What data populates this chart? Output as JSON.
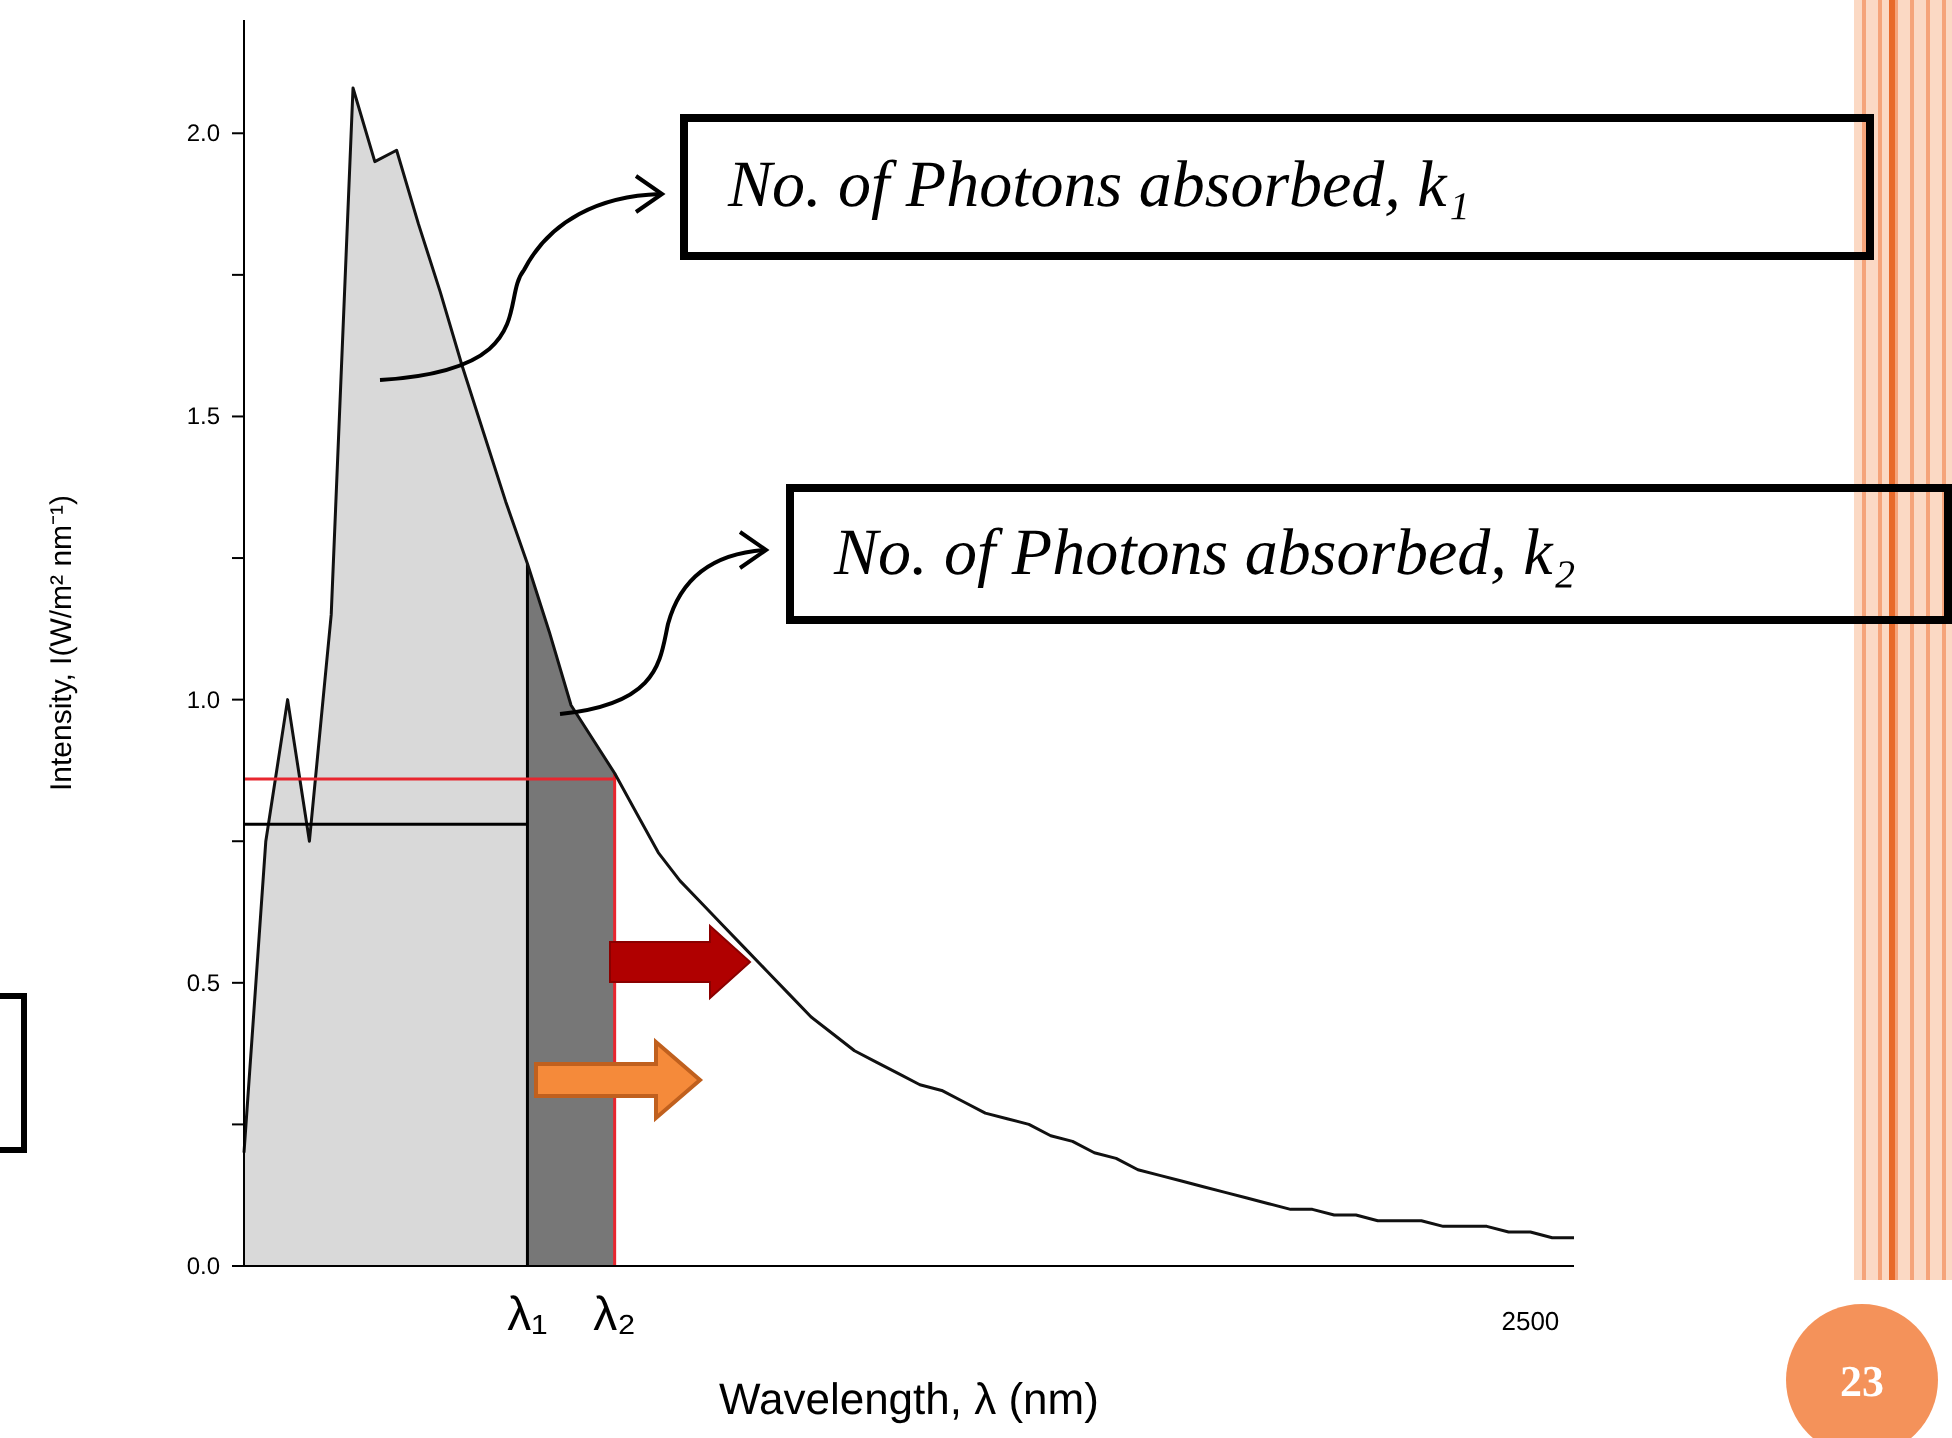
{
  "chart_data": {
    "type": "line",
    "xlabel": "Wavelength, λ (nm)",
    "ylabel": "Intensity, I(W/m² nm⁻¹)",
    "ylim": [
      0,
      2.2
    ],
    "marker": "none",
    "categories": [
      null,
      null,
      null,
      null,
      null,
      null,
      null,
      null,
      null,
      null,
      null,
      null,
      null,
      "λ₁",
      null,
      null,
      null,
      "λ₂",
      null,
      null,
      null,
      null,
      null,
      null,
      null,
      null,
      null,
      null,
      null,
      null,
      null,
      null,
      null,
      null,
      null,
      null,
      null,
      null,
      null,
      null,
      null,
      null,
      null,
      null,
      null,
      null,
      null,
      null,
      null,
      null,
      null,
      null,
      null,
      null,
      null,
      null,
      null,
      null,
      null,
      "2500",
      null,
      null
    ],
    "yticks": [
      {
        "value": 0,
        "label": "0.0"
      },
      {
        "value": 0.25,
        "label": null
      },
      0.5,
      {
        "value": 0.75,
        "label": null
      },
      {
        "value": 1,
        "label": "1.0"
      },
      {
        "value": 1.25,
        "label": null
      },
      1.5,
      {
        "value": 1.75,
        "label": null
      },
      {
        "value": 2,
        "label": "2.0"
      }
    ],
    "ref_lines": [
      {
        "axis": "x",
        "value": "λ₁",
        "color": "#000000"
      },
      {
        "axis": "x",
        "value": "λ₂",
        "color": "#e8262f"
      }
    ],
    "annotations": [
      "No. of Photons absorbed, k₁",
      "No. of Photons absorbed, k₂",
      "23"
    ],
    "series": [
      {
        "type": "area",
        "color": "#d9d9d9",
        "values": [
          0.2,
          0.75,
          1.0,
          0.75,
          1.15,
          2.08,
          1.95,
          1.97,
          1.84,
          1.72,
          1.59,
          1.47,
          1.35,
          1.24,
          null,
          null,
          null,
          null,
          null,
          null,
          null,
          null,
          null,
          null,
          null,
          null,
          null,
          null,
          null,
          null,
          null,
          null,
          null,
          null,
          null,
          null,
          null,
          null,
          null,
          null,
          null,
          null,
          null,
          null,
          null,
          null,
          null,
          null,
          null,
          null,
          null,
          null,
          null,
          null,
          null,
          null,
          null,
          null,
          null,
          null,
          null,
          null
        ]
      },
      {
        "type": "area",
        "color": "#777777",
        "values": [
          null,
          null,
          null,
          null,
          null,
          null,
          null,
          null,
          null,
          null,
          null,
          null,
          null,
          1.24,
          1.12,
          0.99,
          0.93,
          0.87,
          null,
          null,
          null,
          null,
          null,
          null,
          null,
          null,
          null,
          null,
          null,
          null,
          null,
          null,
          null,
          null,
          null,
          null,
          null,
          null,
          null,
          null,
          null,
          null,
          null,
          null,
          null,
          null,
          null,
          null,
          null,
          null,
          null,
          null,
          null,
          null,
          null,
          null,
          null,
          null,
          null,
          null,
          null,
          null
        ]
      },
      {
        "color": "#111111",
        "values": [
          0.2,
          0.75,
          1.0,
          0.75,
          1.15,
          2.08,
          1.95,
          1.97,
          1.84,
          1.72,
          1.59,
          1.47,
          1.35,
          1.24,
          1.12,
          0.99,
          0.93,
          0.87,
          0.8,
          0.73,
          0.68,
          0.64,
          0.6,
          0.56,
          0.52,
          0.48,
          0.44,
          0.41,
          0.38,
          0.36,
          0.34,
          0.32,
          0.31,
          0.29,
          0.27,
          0.26,
          0.25,
          0.23,
          0.22,
          0.2,
          0.19,
          0.17,
          0.16,
          0.15,
          0.14,
          0.13,
          0.12,
          0.11,
          0.1,
          0.1,
          0.09,
          0.09,
          0.08,
          0.08,
          0.08,
          0.07,
          0.07,
          0.07,
          0.06,
          0.06,
          0.05,
          0.05
        ]
      },
      {
        "color": "#000000",
        "values": [
          0.78,
          0.78,
          0.78,
          0.78,
          0.78,
          0.78,
          0.78,
          0.78,
          0.78,
          0.78,
          0.78,
          0.78,
          0.78,
          0.78,
          null,
          null,
          null,
          null,
          null,
          null,
          null,
          null,
          null,
          null,
          null,
          null,
          null,
          null,
          null,
          null,
          null,
          null,
          null,
          null,
          null,
          null,
          null,
          null,
          null,
          null,
          null,
          null,
          null,
          null,
          null,
          null,
          null,
          null,
          null,
          null,
          null,
          null,
          null,
          null,
          null,
          null,
          null,
          null,
          null,
          null,
          null,
          null
        ]
      },
      {
        "color": "#e8262f",
        "values": [
          0.86,
          0.86,
          0.86,
          0.86,
          0.86,
          0.86,
          0.86,
          0.86,
          0.86,
          0.86,
          0.86,
          0.86,
          0.86,
          0.86,
          0.86,
          0.86,
          0.86,
          0.86,
          null,
          null,
          null,
          null,
          null,
          null,
          null,
          null,
          null,
          null,
          null,
          null,
          null,
          null,
          null,
          null,
          null,
          null,
          null,
          null,
          null,
          null,
          null,
          null,
          null,
          null,
          null,
          null,
          null,
          null,
          null,
          null,
          null,
          null,
          null,
          null,
          null,
          null,
          null,
          null,
          null,
          null,
          null,
          null
        ]
      }
    ]
  }
}
